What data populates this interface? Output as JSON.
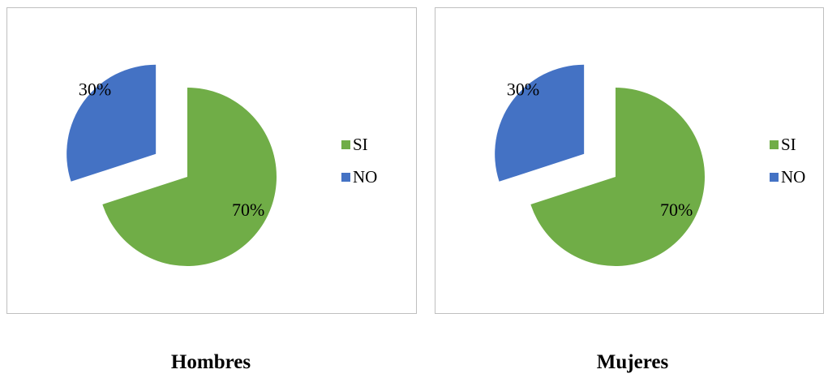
{
  "chart_data": [
    {
      "type": "pie",
      "title": "Hombres",
      "categories": [
        "SI",
        "NO"
      ],
      "values": [
        70,
        30
      ],
      "labels": [
        "70%",
        "30%"
      ],
      "colors": [
        "#70AD47",
        "#4472C4"
      ],
      "exploded": true,
      "legend": "right"
    },
    {
      "type": "pie",
      "title": "Mujeres",
      "categories": [
        "SI",
        "NO"
      ],
      "values": [
        70,
        30
      ],
      "labels": [
        "70%",
        "30%"
      ],
      "colors": [
        "#70AD47",
        "#4472C4"
      ],
      "exploded": true,
      "legend": "right"
    }
  ]
}
